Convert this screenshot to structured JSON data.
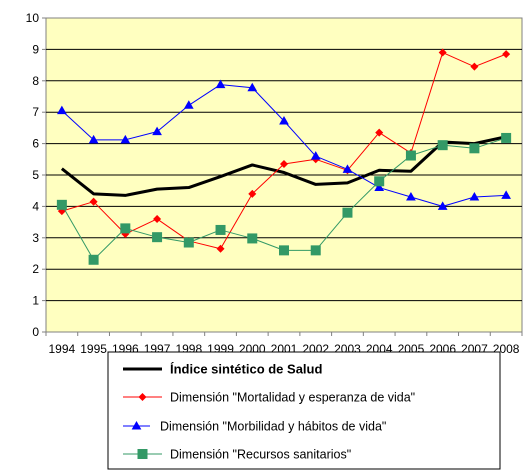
{
  "chart_data": {
    "type": "line",
    "x": [
      "1994",
      "1995",
      "1996",
      "1997",
      "1998",
      "1999",
      "2000",
      "2001",
      "2002",
      "2003",
      "2004",
      "2005",
      "2006",
      "2007",
      "2008"
    ],
    "ylim": [
      0,
      10
    ],
    "yticks": [
      "0",
      "1",
      "2",
      "3",
      "4",
      "5",
      "6",
      "7",
      "8",
      "9",
      "10"
    ],
    "grid": true,
    "legend_position": "bottom",
    "plot_background": "#FFFFC0",
    "series": [
      {
        "name": "Índice sintético de Salud",
        "color": "#000000",
        "marker": "none",
        "values": [
          5.2,
          4.4,
          4.35,
          4.55,
          4.6,
          4.95,
          5.32,
          5.08,
          4.7,
          4.75,
          5.15,
          5.12,
          6.05,
          6.0,
          6.22
        ]
      },
      {
        "name": "Dimensión \"Mortalidad y esperanza de vida\"",
        "color": "#FF0000",
        "marker": "diamond",
        "values": [
          3.85,
          4.15,
          3.12,
          3.6,
          2.9,
          2.65,
          4.4,
          5.35,
          5.5,
          5.15,
          6.35,
          5.7,
          8.9,
          8.45,
          8.85
        ]
      },
      {
        "name": "Dimensión \"Morbilidad y hábitos de vida\"",
        "color": "#0000FF",
        "marker": "triangle",
        "values": [
          7.05,
          6.12,
          6.12,
          6.38,
          7.22,
          7.88,
          7.78,
          6.72,
          5.6,
          5.18,
          4.6,
          4.3,
          4.0,
          4.3,
          4.35
        ]
      },
      {
        "name": "Dimensión \"Recursos sanitarios\"",
        "color": "#339966",
        "marker": "square",
        "values": [
          4.05,
          2.3,
          3.3,
          3.02,
          2.85,
          3.25,
          2.98,
          2.6,
          2.6,
          3.8,
          4.8,
          5.62,
          5.95,
          5.85,
          6.18
        ]
      }
    ]
  }
}
